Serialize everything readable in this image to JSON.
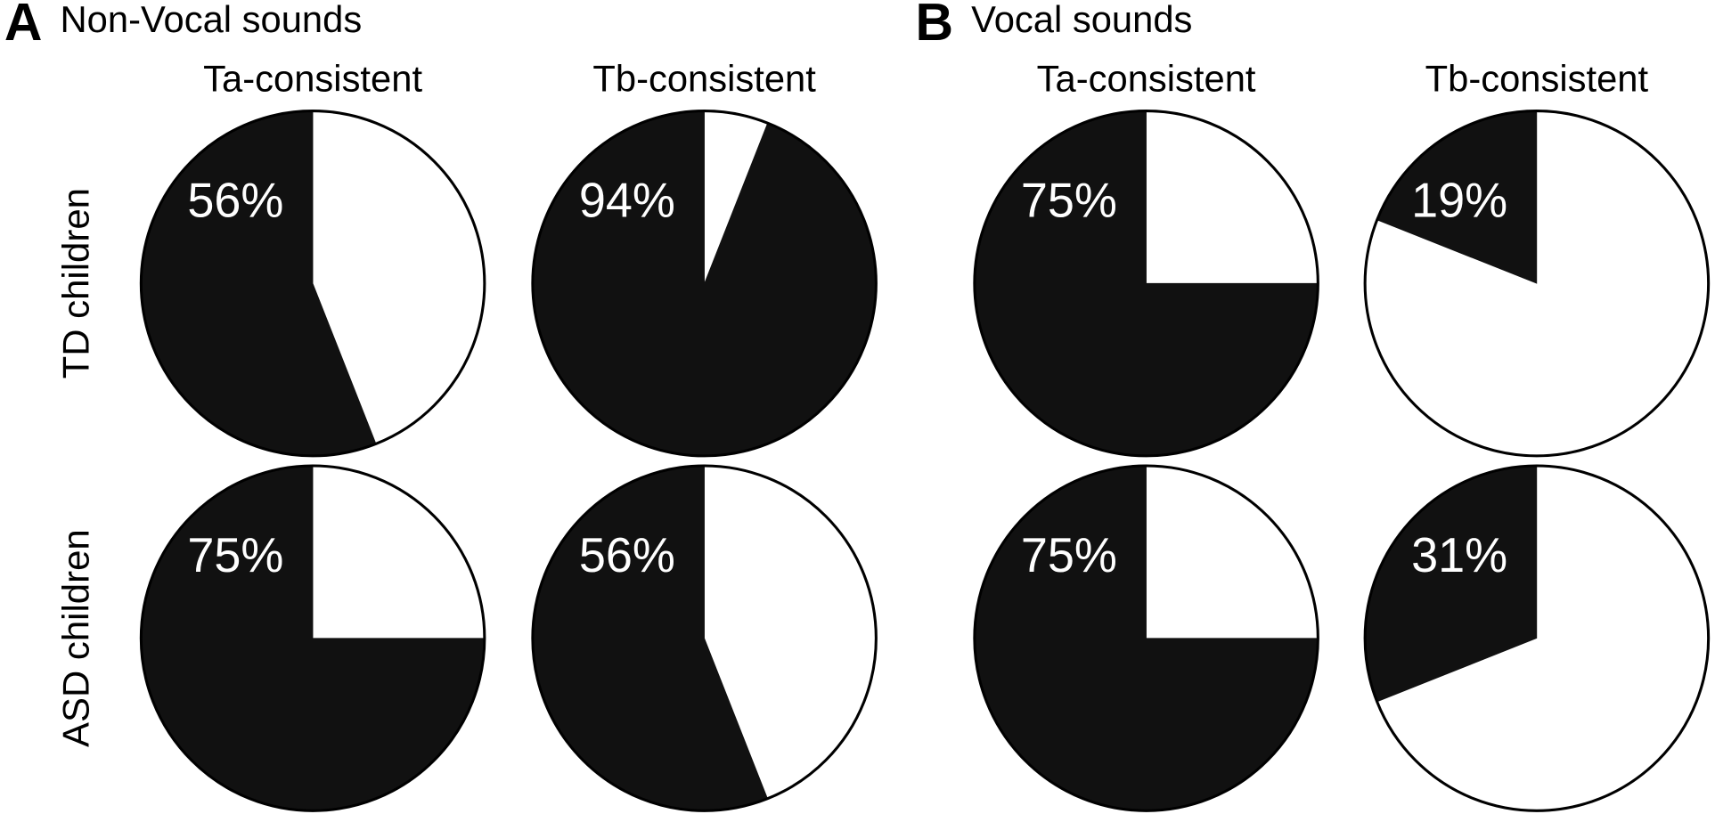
{
  "panels": [
    {
      "letter": "A",
      "title": "Non-Vocal sounds"
    },
    {
      "letter": "B",
      "title": "Vocal sounds"
    }
  ],
  "column_titles": [
    "Ta-consistent",
    "Tb-consistent",
    "Ta-consistent",
    "Tb-consistent"
  ],
  "row_labels": [
    "TD children",
    "ASD children"
  ],
  "chart_data": [
    {
      "type": "pie",
      "values": [
        44,
        56
      ],
      "value_labels": [
        null,
        "56%"
      ],
      "colors": [
        "#ffffff",
        "#111111"
      ]
    },
    {
      "type": "pie",
      "values": [
        6,
        94
      ],
      "value_labels": [
        null,
        "94%"
      ],
      "colors": [
        "#ffffff",
        "#111111"
      ]
    },
    {
      "type": "pie",
      "values": [
        25,
        75
      ],
      "value_labels": [
        null,
        "75%"
      ],
      "colors": [
        "#ffffff",
        "#111111"
      ]
    },
    {
      "type": "pie",
      "values": [
        81,
        19
      ],
      "value_labels": [
        null,
        "19%"
      ],
      "colors": [
        "#ffffff",
        "#111111"
      ]
    },
    {
      "type": "pie",
      "values": [
        25,
        75
      ],
      "value_labels": [
        null,
        "75%"
      ],
      "colors": [
        "#ffffff",
        "#111111"
      ]
    },
    {
      "type": "pie",
      "values": [
        44,
        56
      ],
      "value_labels": [
        null,
        "56%"
      ],
      "colors": [
        "#ffffff",
        "#111111"
      ]
    },
    {
      "type": "pie",
      "values": [
        25,
        75
      ],
      "value_labels": [
        null,
        "75%"
      ],
      "colors": [
        "#ffffff",
        "#111111"
      ]
    },
    {
      "type": "pie",
      "values": [
        69,
        31
      ],
      "value_labels": [
        null,
        "31%"
      ],
      "colors": [
        "#ffffff",
        "#111111"
      ]
    }
  ]
}
